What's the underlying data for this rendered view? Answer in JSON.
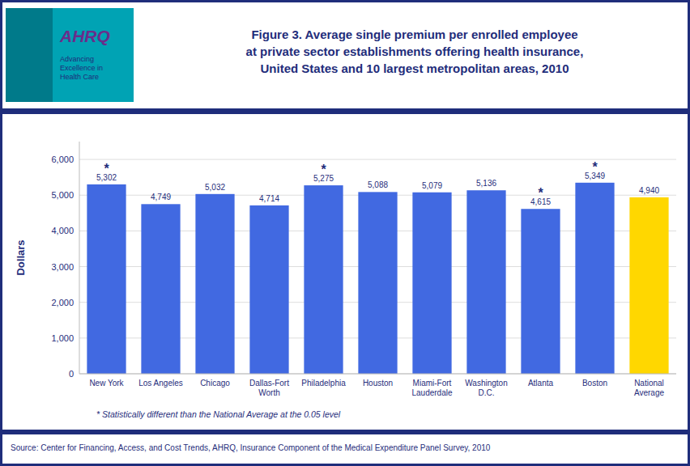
{
  "chart_data": {
    "type": "bar",
    "title": "Figure 3. Average single premium per enrolled employee\nat private sector establishments offering health insurance,\nUnited States and 10 largest metropolitan areas, 2010",
    "categories": [
      "New York",
      "Los Angeles",
      "Chicago",
      "Dallas-Fort\nWorth",
      "Philadelphia",
      "Houston",
      "Miami-Fort\nLauderdale",
      "Washington\nD.C.",
      "Atlanta",
      "Boston",
      "National\nAverage"
    ],
    "values": [
      5302,
      4749,
      5032,
      4714,
      5275,
      5088,
      5079,
      5136,
      4615,
      5349,
      4940
    ],
    "value_labels": [
      "5,302",
      "4,749",
      "5,032",
      "4,714",
      "5,275",
      "5,088",
      "5,079",
      "5,136",
      "4,615",
      "5,349",
      "4,940"
    ],
    "data_labels": true,
    "colors": [
      "#4169E1",
      "#4169E1",
      "#4169E1",
      "#4169E1",
      "#4169E1",
      "#4169E1",
      "#4169E1",
      "#4169E1",
      "#4169E1",
      "#4169E1",
      "#FFD700"
    ],
    "annotations": [
      "*",
      null,
      null,
      null,
      "*",
      null,
      null,
      null,
      "*",
      "*",
      null
    ],
    "ylabel": "Dollars",
    "ylim": [
      0,
      6500
    ],
    "yticks": [
      0,
      {
        "value": 1000,
        "label": "1,000"
      },
      {
        "value": 2000,
        "label": "2,000"
      },
      {
        "value": 3000,
        "label": "3,000"
      },
      {
        "value": 4000,
        "label": "4,000"
      },
      {
        "value": 5000,
        "label": "5,000"
      },
      {
        "value": 6000,
        "label": "6,000"
      }
    ],
    "grid": true,
    "footnote": "* Statistically different than the National Average at the 0.05 level",
    "source": "Source: Center for Financing, Access, and Cost Trends, AHRQ, Insurance Component of the Medical Expenditure Panel Survey, 2010",
    "logo": [
      "AHRQ",
      "Advancing\nExcellence in\nHealth Care"
    ]
  }
}
